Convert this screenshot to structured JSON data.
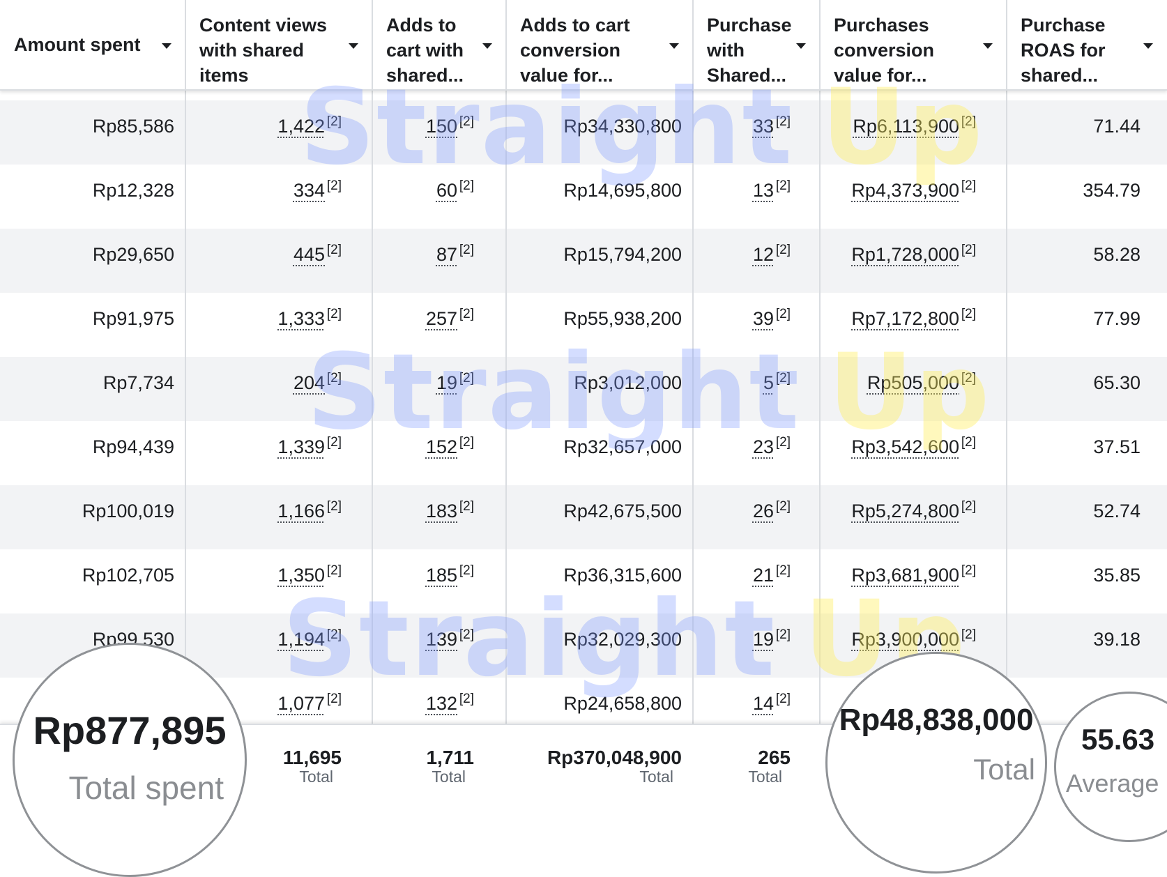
{
  "columns": [
    {
      "key": "amount",
      "label": "Amount spent"
    },
    {
      "key": "views",
      "label": "Content views with shared items"
    },
    {
      "key": "adds",
      "label": "Adds to cart with shared..."
    },
    {
      "key": "addsval",
      "label": "Adds to cart conversion value for..."
    },
    {
      "key": "purch",
      "label": "Purchase with Shared..."
    },
    {
      "key": "purchval",
      "label": "Purchases conversion value for..."
    },
    {
      "key": "roas",
      "label": "Purchase ROAS for shared..."
    }
  ],
  "footnote": "[2]",
  "rows": [
    {
      "amount": "Rp85,586",
      "views": "1,422",
      "adds": "150",
      "addsval": "Rp34,330,800",
      "purch": "33",
      "purchval": "Rp6,113,900",
      "roas": "71.44"
    },
    {
      "amount": "Rp12,328",
      "views": "334",
      "adds": "60",
      "addsval": "Rp14,695,800",
      "purch": "13",
      "purchval": "Rp4,373,900",
      "roas": "354.79"
    },
    {
      "amount": "Rp29,650",
      "views": "445",
      "adds": "87",
      "addsval": "Rp15,794,200",
      "purch": "12",
      "purchval": "Rp1,728,000",
      "roas": "58.28"
    },
    {
      "amount": "Rp91,975",
      "views": "1,333",
      "adds": "257",
      "addsval": "Rp55,938,200",
      "purch": "39",
      "purchval": "Rp7,172,800",
      "roas": "77.99"
    },
    {
      "amount": "Rp7,734",
      "views": "204",
      "adds": "19",
      "addsval": "Rp3,012,000",
      "purch": "5",
      "purchval": "Rp505,000",
      "roas": "65.30"
    },
    {
      "amount": "Rp94,439",
      "views": "1,339",
      "adds": "152",
      "addsval": "Rp32,657,000",
      "purch": "23",
      "purchval": "Rp3,542,600",
      "roas": "37.51"
    },
    {
      "amount": "Rp100,019",
      "views": "1,166",
      "adds": "183",
      "addsval": "Rp42,675,500",
      "purch": "26",
      "purchval": "Rp5,274,800",
      "roas": "52.74"
    },
    {
      "amount": "Rp102,705",
      "views": "1,350",
      "adds": "185",
      "addsval": "Rp36,315,600",
      "purch": "21",
      "purchval": "Rp3,681,900",
      "roas": "35.85"
    },
    {
      "amount": "Rp99,530",
      "views": "1,194",
      "adds": "139",
      "addsval": "Rp32,029,300",
      "purch": "19",
      "purchval": "Rp3,900,000",
      "roas": "39.18"
    },
    {
      "amount": "",
      "views": "1,077",
      "adds": "132",
      "addsval": "Rp24,658,800",
      "purch": "14",
      "purchval": "",
      "roas": ""
    }
  ],
  "footer": {
    "views": {
      "value": "11,695",
      "label": "Total"
    },
    "adds": {
      "value": "1,711",
      "label": "Total"
    },
    "addsval": {
      "value": "Rp370,048,900",
      "label": "Total"
    },
    "purch": {
      "value": "265",
      "label": "Total"
    }
  },
  "callouts": {
    "spent": {
      "value": "Rp877,895",
      "label": "Total spent"
    },
    "purchval": {
      "value": "Rp48,838,000",
      "label": "Total"
    },
    "roas": {
      "value": "55.63",
      "label": "Average"
    }
  },
  "watermark": {
    "word1": "Straight",
    "word2": "Up"
  },
  "colors": {
    "header_text": "#1c1e21",
    "row_shade": "#f2f3f5",
    "divider": "#dadde1",
    "watermark_blue": "#7896ff",
    "watermark_yellow": "#ffee5a"
  }
}
